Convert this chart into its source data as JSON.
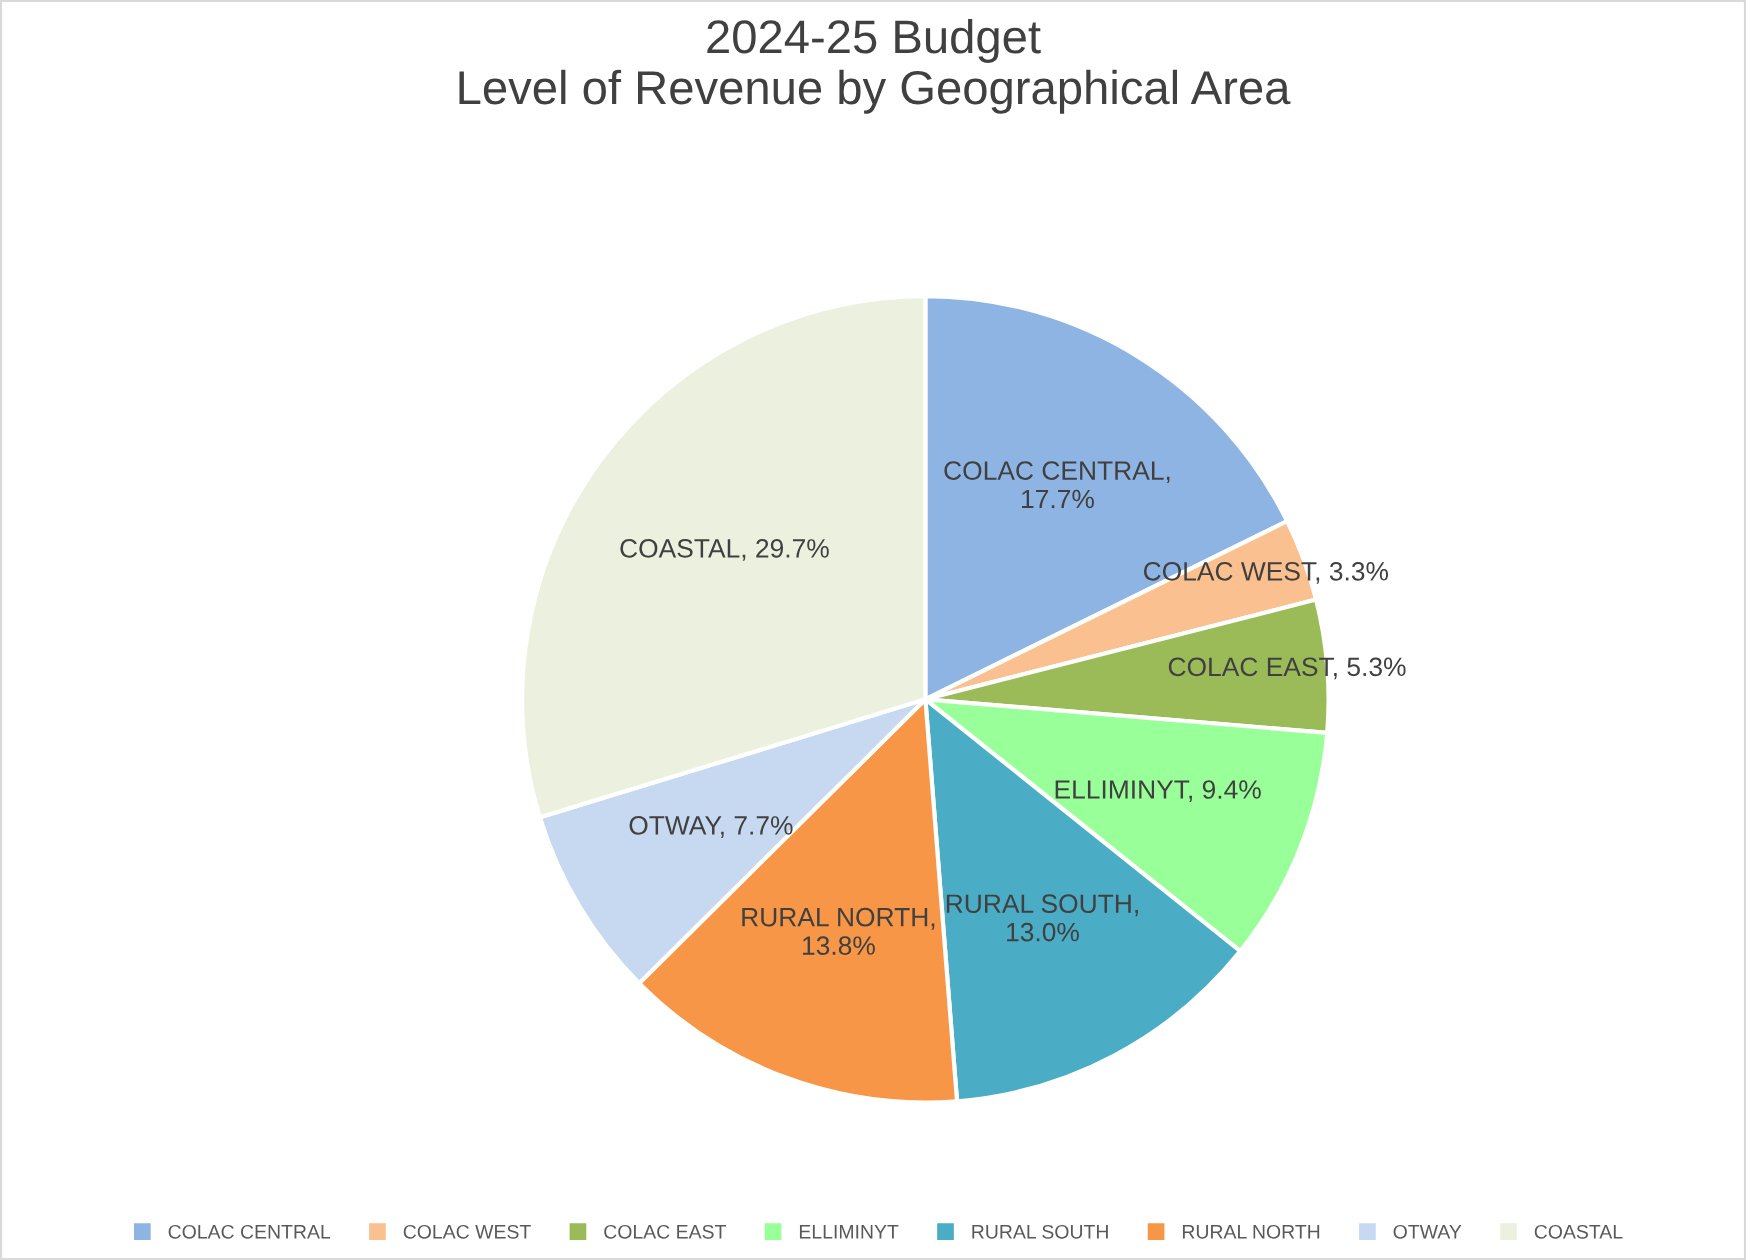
{
  "chart_data": {
    "type": "pie",
    "title": "2024-25 Budget\nLevel of Revenue by Geographical Area",
    "categories": [
      "COLAC CENTRAL",
      "COLAC WEST",
      "COLAC EAST",
      "ELLIMINYT",
      "RURAL SOUTH",
      "RURAL NORTH",
      "OTWAY",
      "COASTAL"
    ],
    "values": [
      17.7,
      3.3,
      5.3,
      9.4,
      13.0,
      13.8,
      7.7,
      29.7
    ],
    "colors": [
      "#8eb4e3",
      "#fac090",
      "#9bbb59",
      "#99ff99",
      "#4bacc6",
      "#f79646",
      "#c6d9f1",
      "#ebf1de"
    ],
    "value_labels": [
      "COLAC CENTRAL,\n17.7%",
      "COLAC WEST, 3.3%",
      "COLAC EAST, 5.3%",
      "ELLIMINYT, 9.4%",
      "RURAL SOUTH,\n13.0%",
      "RURAL NORTH,\n13.8%",
      "OTWAY, 7.7%",
      "COASTAL, 29.7%"
    ],
    "legend": "bottom"
  }
}
